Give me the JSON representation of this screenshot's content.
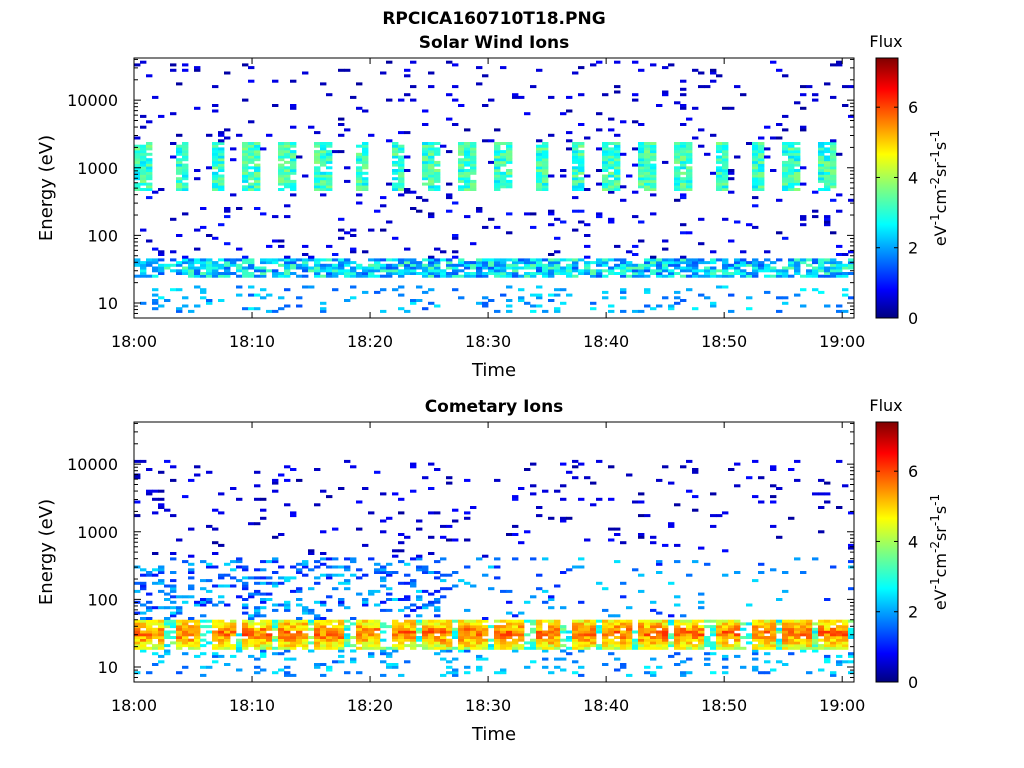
{
  "figure": {
    "title": "RPCICA160710T18.PNG"
  },
  "chart_data": [
    {
      "type": "heatmap",
      "title": "Solar Wind Ions",
      "xlabel": "Time",
      "ylabel": "Energy (eV)",
      "x_ticks": [
        "18:00",
        "18:10",
        "18:20",
        "18:30",
        "18:40",
        "18:50",
        "19:00"
      ],
      "xlim": [
        "18:00",
        "19:01"
      ],
      "y_scale": "log",
      "y_ticks": [
        "10",
        "100",
        "1000",
        "10000"
      ],
      "ylim": [
        6,
        42000
      ],
      "colorbar": {
        "label": "Flux",
        "unit_label": "eV-1cm-2sr-1s-1",
        "ticks": [
          "0",
          "2",
          "4",
          "6"
        ],
        "range": [
          0,
          7.4
        ],
        "colormap": "jet"
      },
      "bands": [
        {
          "energy_min": 450,
          "energy_max": 2500,
          "level_range": [
            2.5,
            3.8
          ],
          "pattern": "periodic vertical blocks, period ~3 min"
        },
        {
          "energy_min": 25,
          "energy_max": 45,
          "level_range": [
            1.5,
            3.5
          ],
          "pattern": "continuous with gaps"
        },
        {
          "energy_min": 7,
          "energy_max": 18,
          "level_range": [
            1.5,
            2.8
          ],
          "pattern": "sparse"
        }
      ]
    },
    {
      "type": "heatmap",
      "title": "Cometary Ions",
      "xlabel": "Time",
      "ylabel": "Energy (eV)",
      "x_ticks": [
        "18:00",
        "18:10",
        "18:20",
        "18:30",
        "18:40",
        "18:50",
        "19:00"
      ],
      "xlim": [
        "18:00",
        "19:01"
      ],
      "y_scale": "log",
      "y_ticks": [
        "10",
        "100",
        "1000",
        "10000"
      ],
      "ylim": [
        6,
        42000
      ],
      "colorbar": {
        "label": "Flux",
        "unit_label": "eV-1cm-2sr-1s-1",
        "ticks": [
          "0",
          "2",
          "4",
          "6"
        ],
        "range": [
          0,
          7.4
        ],
        "colormap": "jet"
      },
      "bands": [
        {
          "energy_min": 18,
          "energy_max": 50,
          "level_range": [
            4.5,
            6.3
          ],
          "pattern": "periodic blocks, period ~3 min"
        },
        {
          "energy_min": 50,
          "energy_max": 400,
          "level_range": [
            1.0,
            2.6
          ],
          "pattern": "sporadic, strongest 18:00-18:25"
        },
        {
          "energy_min": 7,
          "energy_max": 18,
          "level_range": [
            1.5,
            2.8
          ],
          "pattern": "sparse"
        }
      ]
    }
  ]
}
